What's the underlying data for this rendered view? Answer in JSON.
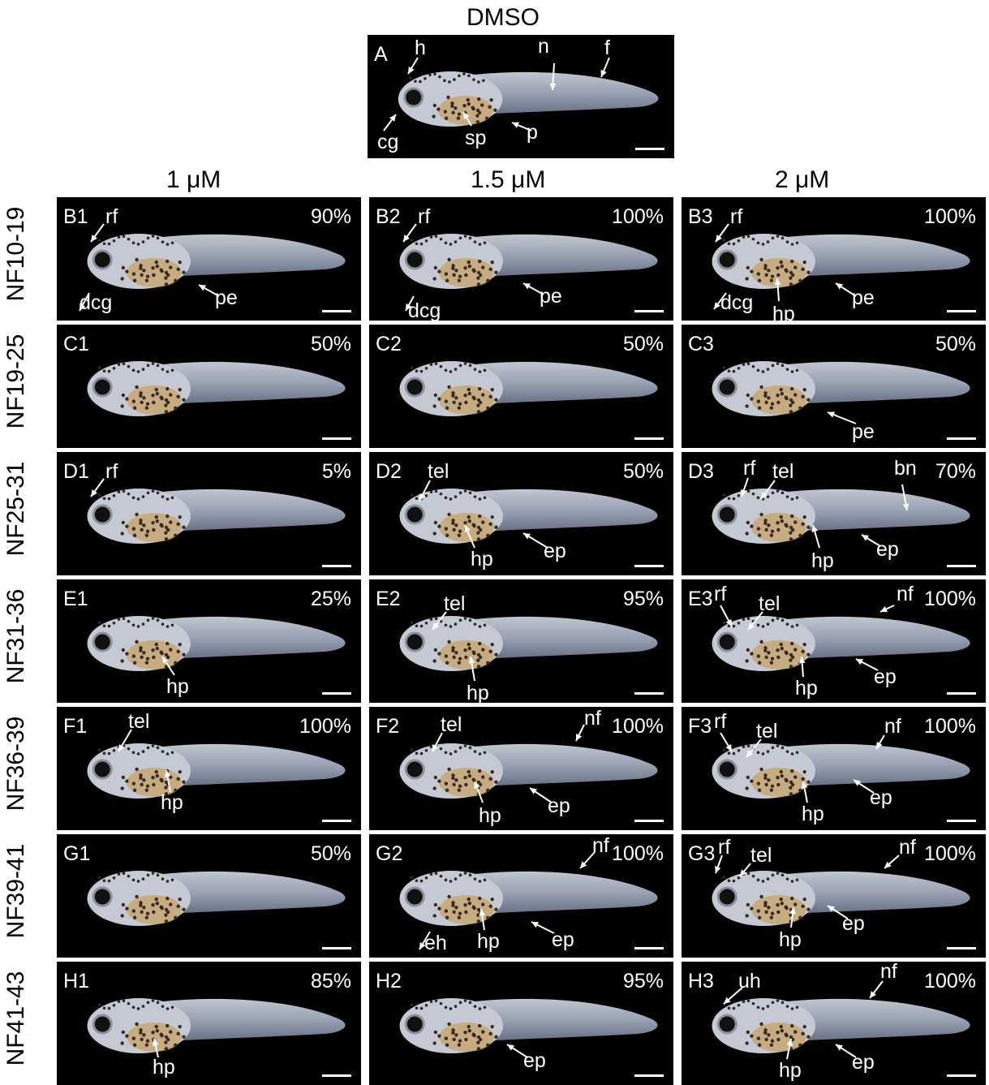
{
  "header": {
    "control_title": "DMSO",
    "columns": [
      "1 μM",
      "1.5 μM",
      "2 μM"
    ]
  },
  "rows": [
    "NF10-19",
    "NF19-25",
    "NF25-31",
    "NF31-36",
    "NF36-39",
    "NF39-41",
    "NF41-43"
  ],
  "control_panel": {
    "id": "A",
    "labels": [
      "h",
      "n",
      "f",
      "cg",
      "sp",
      "p"
    ]
  },
  "panels": [
    [
      {
        "id": "B1",
        "pct": "90%",
        "labels": [
          "rf",
          "dcg",
          "pe"
        ]
      },
      {
        "id": "B2",
        "pct": "100%",
        "labels": [
          "rf",
          "dcg",
          "pe"
        ]
      },
      {
        "id": "B3",
        "pct": "100%",
        "labels": [
          "rf",
          "dcg",
          "hp",
          "pe"
        ]
      }
    ],
    [
      {
        "id": "C1",
        "pct": "50%",
        "labels": []
      },
      {
        "id": "C2",
        "pct": "50%",
        "labels": []
      },
      {
        "id": "C3",
        "pct": "50%",
        "labels": [
          "pe"
        ]
      }
    ],
    [
      {
        "id": "D1",
        "pct": "5%",
        "labels": [
          "rf"
        ]
      },
      {
        "id": "D2",
        "pct": "50%",
        "labels": [
          "tel",
          "hp",
          "ep"
        ]
      },
      {
        "id": "D3",
        "pct": "70%",
        "labels": [
          "rf",
          "tel",
          "bn",
          "hp",
          "ep"
        ]
      }
    ],
    [
      {
        "id": "E1",
        "pct": "25%",
        "labels": [
          "hp"
        ]
      },
      {
        "id": "E2",
        "pct": "95%",
        "labels": [
          "tel",
          "hp"
        ]
      },
      {
        "id": "E3",
        "pct": "100%",
        "labels": [
          "rf",
          "tel",
          "nf",
          "hp",
          "ep"
        ]
      }
    ],
    [
      {
        "id": "F1",
        "pct": "100%",
        "labels": [
          "tel",
          "hp"
        ]
      },
      {
        "id": "F2",
        "pct": "100%",
        "labels": [
          "tel",
          "nf",
          "hp",
          "ep"
        ]
      },
      {
        "id": "F3",
        "pct": "100%",
        "labels": [
          "rf",
          "tel",
          "nf",
          "hp",
          "ep"
        ]
      }
    ],
    [
      {
        "id": "G1",
        "pct": "50%",
        "labels": []
      },
      {
        "id": "G2",
        "pct": "100%",
        "labels": [
          "nf",
          "eh",
          "hp",
          "ep"
        ]
      },
      {
        "id": "G3",
        "pct": "100%",
        "labels": [
          "rf",
          "tel",
          "nf",
          "hp",
          "ep"
        ]
      }
    ],
    [
      {
        "id": "H1",
        "pct": "85%",
        "labels": [
          "hp"
        ]
      },
      {
        "id": "H2",
        "pct": "95%",
        "labels": [
          "ep"
        ]
      },
      {
        "id": "H3",
        "pct": "100%",
        "labels": [
          "uh",
          "nf",
          "hp",
          "ep"
        ]
      }
    ]
  ],
  "colors": {
    "background": "#000000",
    "tadpole_body": "#b9bfcf",
    "tadpole_gut": "#c8a772",
    "annotation": "#ffffff"
  }
}
